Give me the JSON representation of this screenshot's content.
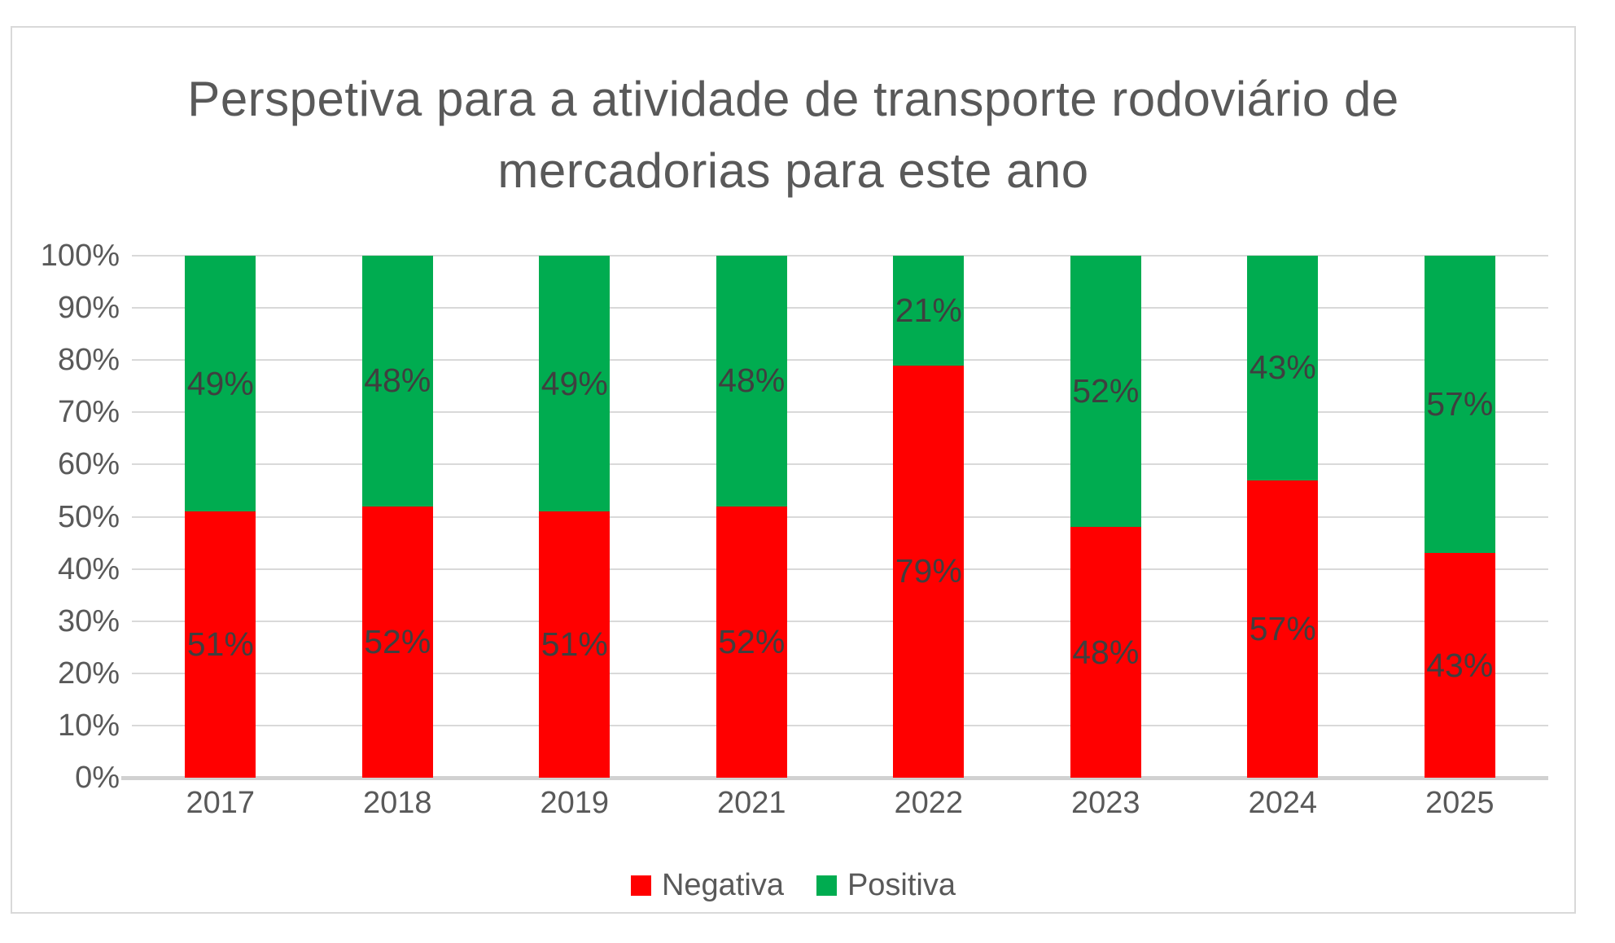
{
  "chart_data": {
    "type": "bar",
    "stacked": true,
    "title": "Perspetiva para a atividade de transporte rodoviário de mercadorias para este ano",
    "title_lines": [
      "Perspetiva para a atividade de transporte rodoviário de",
      "mercadorias para este ano"
    ],
    "categories": [
      "2017",
      "2018",
      "2019",
      "2021",
      "2022",
      "2023",
      "2024",
      "2025"
    ],
    "series": [
      {
        "name": "Negativa",
        "color": "#ff0000",
        "values": [
          51,
          52,
          51,
          52,
          79,
          48,
          57,
          43
        ]
      },
      {
        "name": "Positiva",
        "color": "#00ac50",
        "values": [
          49,
          48,
          49,
          48,
          21,
          52,
          43,
          57
        ]
      }
    ],
    "value_suffix": "%",
    "data_labels": true,
    "y_axis": {
      "min": 0,
      "max": 100,
      "step": 10,
      "tick_labels": [
        "0%",
        "10%",
        "20%",
        "30%",
        "40%",
        "50%",
        "60%",
        "70%",
        "80%",
        "90%",
        "100%"
      ]
    },
    "xlabel": "",
    "ylabel": "",
    "grid": true,
    "legend_position": "bottom"
  }
}
